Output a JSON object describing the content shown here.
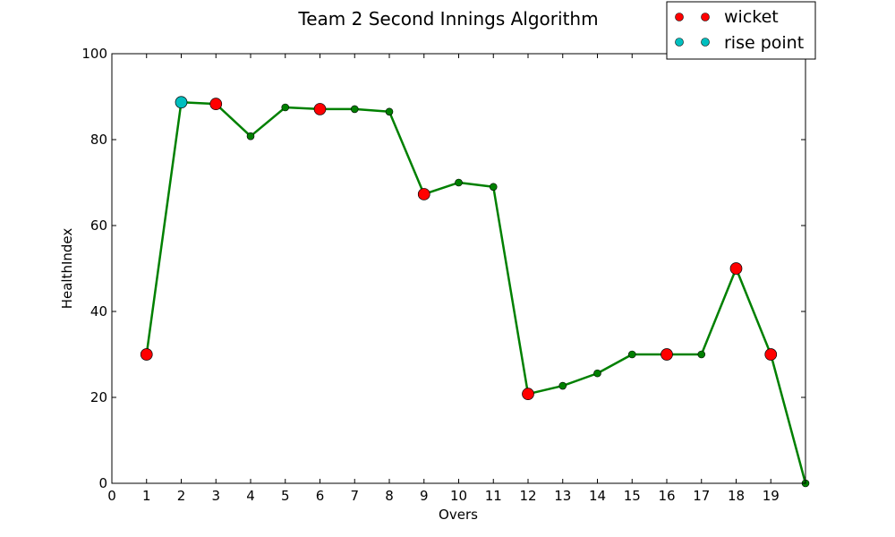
{
  "chart_data": {
    "type": "line",
    "title": "Team 2 Second Innings Algorithm",
    "xlabel": "Overs",
    "ylabel": "HealthIndex",
    "xlim": [
      0,
      20
    ],
    "ylim": [
      0,
      100
    ],
    "xticks": [
      0,
      1,
      2,
      3,
      4,
      5,
      6,
      7,
      8,
      9,
      10,
      11,
      12,
      13,
      14,
      15,
      16,
      17,
      18,
      19
    ],
    "yticks": [
      0,
      20,
      40,
      60,
      80,
      100
    ],
    "grid": false,
    "legend_position": "top-right",
    "series": [
      {
        "x": [
          1,
          2,
          3,
          4,
          5,
          6,
          7,
          8,
          9,
          10,
          11,
          12,
          13,
          14,
          15,
          16,
          17,
          18,
          19,
          20
        ],
        "values": [
          30,
          88.7,
          88.3,
          80.8,
          87.5,
          87.1,
          87.1,
          86.5,
          67.3,
          70,
          69,
          20.8,
          22.7,
          25.6,
          30,
          30,
          30,
          50,
          30,
          0
        ],
        "color": "#008000"
      }
    ],
    "markers": [
      {
        "name": "wicket",
        "color": "#ff0000",
        "x": [
          1,
          3,
          6,
          9,
          12,
          16,
          18,
          19
        ],
        "y": [
          30,
          88.3,
          87.1,
          67.3,
          20.8,
          30,
          50,
          30
        ]
      },
      {
        "name": "rise point",
        "color": "#00bfbf",
        "x": [
          2
        ],
        "y": [
          88.7
        ]
      }
    ]
  }
}
